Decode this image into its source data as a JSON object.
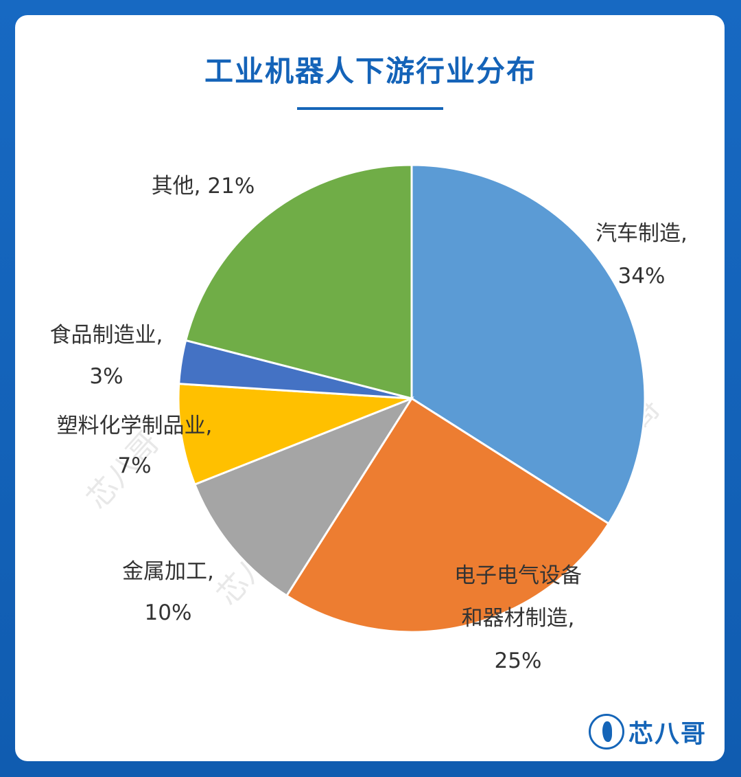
{
  "title": "工业机器人下游行业分布",
  "brand": {
    "name": "芯八哥",
    "logo_icon": "bird-logo-icon"
  },
  "watermark": "芯八哥",
  "chart_data": {
    "type": "pie",
    "title": "工业机器人下游行业分布",
    "slices": [
      {
        "label_lines": [
          "汽车制造,",
          "34%"
        ],
        "name": "汽车制造",
        "value": 34,
        "color": "#5b9bd5"
      },
      {
        "label_lines": [
          "电子电气设备",
          "和器材制造,",
          "25%"
        ],
        "name": "电子电气设备和器材制造",
        "value": 25,
        "color": "#ed7d31"
      },
      {
        "label_lines": [
          "金属加工,",
          "10%"
        ],
        "name": "金属加工",
        "value": 10,
        "color": "#a5a5a5"
      },
      {
        "label_lines": [
          "塑料化学制品业,",
          "7%"
        ],
        "name": "塑料化学制品业",
        "value": 7,
        "color": "#ffc000"
      },
      {
        "label_lines": [
          "食品制造业,",
          "3%"
        ],
        "name": "食品制造业",
        "value": 3,
        "color": "#4472c4"
      },
      {
        "label_lines": [
          "其他, 21%"
        ],
        "name": "其他",
        "value": 21,
        "color": "#70ad47"
      }
    ]
  }
}
